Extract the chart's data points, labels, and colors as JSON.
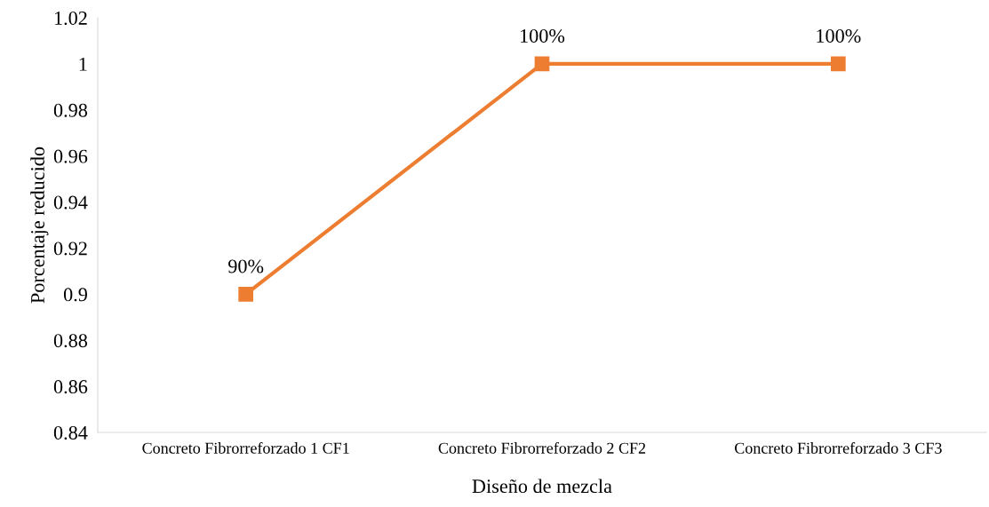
{
  "chart_data": {
    "type": "line",
    "xlabel": "Diseño de mezcla",
    "ylabel": "Porcentaje reducido",
    "categories": [
      "Concreto Fibrorreforzado 1 CF1",
      "Concreto Fibrorreforzado 2 CF2",
      "Concreto Fibrorreforzado 3 CF3"
    ],
    "values": [
      0.9,
      1,
      1
    ],
    "value_labels": [
      "90%",
      "100%",
      "100%"
    ],
    "color": "#ed7d31",
    "marker": "square",
    "line_style": "solid",
    "ylim": [
      0.84,
      1.02
    ],
    "yticks": [
      0.84,
      0.86,
      0.88,
      0.9,
      0.92,
      0.94,
      0.96,
      0.98,
      1,
      1.02
    ],
    "grid": false,
    "legend": false
  }
}
